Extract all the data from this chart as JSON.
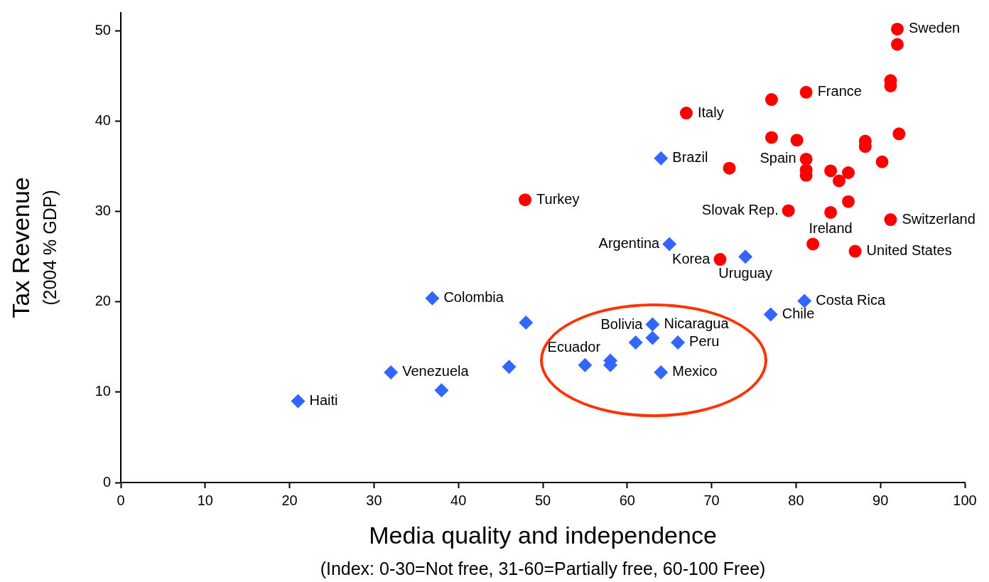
{
  "chart_data": {
    "type": "scatter",
    "xlabel": "Media quality and independence\n(Index: 0-30=Not free, 31-60=Partially free, 60-100 Free)",
    "ylabel": "Tax Revenue\n(2004 % GDP)",
    "xlim": [
      0,
      100
    ],
    "xticks": [
      0,
      10,
      20,
      30,
      40,
      50,
      60,
      70,
      80,
      90,
      100
    ],
    "ylim": [
      0,
      52
    ],
    "yticks": [
      0,
      10,
      20,
      30,
      40,
      50
    ],
    "grid": false,
    "legend": false,
    "series": [
      {
        "color": "#ff0000",
        "marker": "circle",
        "x": [
          92,
          92,
          91.2,
          91.2,
          81.2,
          77.1,
          67,
          92.2,
          77.1,
          80.1,
          88.2,
          88.2,
          81.2,
          90.2,
          72.1,
          81.2,
          81.2,
          84.1,
          86.2,
          85.1,
          86.2,
          79.1,
          84.1,
          91.2,
          47.9,
          71,
          82,
          87
        ],
        "values": [
          50.2,
          48.5,
          44.5,
          43.9,
          43.2,
          42.4,
          40.9,
          38.6,
          38.2,
          37.9,
          37.8,
          37.2,
          35.8,
          35.5,
          34.8,
          34.6,
          34,
          34.5,
          34.3,
          33.4,
          31.1,
          30.1,
          29.9,
          29.1,
          31.3,
          24.7,
          26.4,
          25.6
        ]
      },
      {
        "color": "#3366ff",
        "marker": "diamond",
        "x": [
          64,
          65,
          74,
          81,
          77,
          36.9,
          48,
          63,
          63,
          61,
          66,
          55,
          58,
          58,
          64,
          46,
          32,
          38,
          21
        ],
        "values": [
          35.9,
          26.4,
          25,
          20.1,
          18.6,
          20.4,
          17.7,
          17.5,
          16,
          15.5,
          15.5,
          13,
          13.5,
          13,
          12.2,
          12.8,
          12.2,
          10.2,
          9
        ]
      }
    ],
    "annotations": [
      {
        "text": "Sweden",
        "x": 92,
        "y": 50.2
      },
      {
        "text": "France",
        "x": 81.2,
        "y": 43.2
      },
      {
        "text": "Italy",
        "x": 67,
        "y": 40.9
      },
      {
        "text": "Brazil",
        "x": 64,
        "y": 35.9
      },
      {
        "text": "Spain",
        "x": 81.2,
        "y": 35.8
      },
      {
        "text": "Turkey",
        "x": 47.9,
        "y": 31.3
      },
      {
        "text": "Slovak Rep.",
        "x": 79.1,
        "y": 30.1
      },
      {
        "text": "Switzerland",
        "x": 91.2,
        "y": 29.1
      },
      {
        "text": "Ireland",
        "x": 84.1,
        "y": 29.9
      },
      {
        "text": "Argentina",
        "x": 65,
        "y": 26.4
      },
      {
        "text": "Uruguay",
        "x": 74,
        "y": 25
      },
      {
        "text": "United States",
        "x": 87,
        "y": 25.6
      },
      {
        "text": "Korea",
        "x": 71,
        "y": 24.7
      },
      {
        "text": "Colombia",
        "x": 36.9,
        "y": 20.4
      },
      {
        "text": "Costa Rica",
        "x": 81,
        "y": 20.1
      },
      {
        "text": "Chile",
        "x": 77,
        "y": 18.6
      },
      {
        "text": "Nicaragua",
        "x": 63,
        "y": 17.5
      },
      {
        "text": "Ecuador",
        "x": 58,
        "y": 13.5
      },
      {
        "text": "Peru",
        "x": 66,
        "y": 15.5
      },
      {
        "text": "Bolivia",
        "x": 63,
        "y": 16
      },
      {
        "text": "Venezuela",
        "x": 32,
        "y": 12.2
      },
      {
        "text": "Mexico",
        "x": 64,
        "y": 12.2
      },
      {
        "text": "Haiti",
        "x": 21,
        "y": 9
      }
    ]
  }
}
